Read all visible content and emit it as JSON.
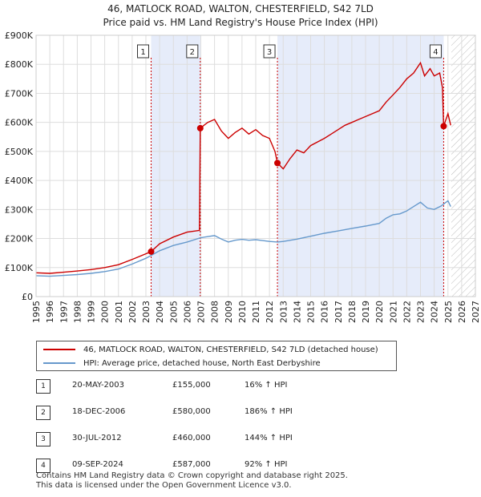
{
  "title_line1": "46, MATLOCK ROAD, WALTON, CHESTERFIELD, S42 7LD",
  "title_line2": "Price paid vs. HM Land Registry's House Price Index (HPI)",
  "legend": {
    "property": "46, MATLOCK ROAD, WALTON, CHESTERFIELD, S42 7LD (detached house)",
    "hpi": "HPI: Average price, detached house, North East Derbyshire"
  },
  "colors": {
    "property": "#cc0000",
    "hpi": "#6699cc",
    "shade": "#e6ecfa",
    "marker_line": "#cc0000"
  },
  "transactions": [
    {
      "n": "1",
      "date": "20-MAY-2003",
      "price": "£155,000",
      "hpi": "16% ↑ HPI"
    },
    {
      "n": "2",
      "date": "18-DEC-2006",
      "price": "£580,000",
      "hpi": "186% ↑ HPI"
    },
    {
      "n": "3",
      "date": "30-JUL-2012",
      "price": "£460,000",
      "hpi": "144% ↑ HPI"
    },
    {
      "n": "4",
      "date": "09-SEP-2024",
      "price": "£587,000",
      "hpi": "92% ↑ HPI"
    }
  ],
  "footer": {
    "line1": "Contains HM Land Registry data © Crown copyright and database right 2025.",
    "line2": "This data is licensed under the Open Government Licence v3.0."
  },
  "chart_data": {
    "type": "line",
    "title": "Price paid vs. HM Land Registry's House Price Index (HPI)",
    "xlim": [
      1995,
      2027
    ],
    "ylim": [
      0,
      900000
    ],
    "x_ticks": [
      "1995",
      "1996",
      "1997",
      "1998",
      "1999",
      "2000",
      "2001",
      "2002",
      "2003",
      "2004",
      "2005",
      "2006",
      "2007",
      "2008",
      "2009",
      "2010",
      "2011",
      "2012",
      "2013",
      "2014",
      "2015",
      "2016",
      "2017",
      "2018",
      "2019",
      "2020",
      "2021",
      "2022",
      "2023",
      "2024",
      "2025",
      "2026",
      "2027"
    ],
    "y_ticks": [
      {
        "value": 0,
        "label": "£0"
      },
      {
        "value": 100000,
        "label": "£100K"
      },
      {
        "value": 200000,
        "label": "£200K"
      },
      {
        "value": 300000,
        "label": "£300K"
      },
      {
        "value": 400000,
        "label": "£400K"
      },
      {
        "value": 500000,
        "label": "£500K"
      },
      {
        "value": 600000,
        "label": "£600K"
      },
      {
        "value": 700000,
        "label": "£700K"
      },
      {
        "value": 800000,
        "label": "£800K"
      },
      {
        "value": 900000,
        "label": "£900K"
      }
    ],
    "shaded_ranges": [
      [
        2003.38,
        2006.96
      ],
      [
        2012.58,
        2024.69
      ]
    ],
    "future_hatch_from": 2025.25,
    "sales": [
      {
        "label": "1",
        "x": 2003.38,
        "y": 155000
      },
      {
        "label": "2",
        "x": 2006.96,
        "y": 580000
      },
      {
        "label": "3",
        "x": 2012.58,
        "y": 460000
      },
      {
        "label": "4",
        "x": 2024.69,
        "y": 587000
      }
    ],
    "series": [
      {
        "name": "46, MATLOCK ROAD, WALTON, CHESTERFIELD, S42 7LD (detached house)",
        "color": "#cc0000",
        "points": [
          [
            1995,
            82000
          ],
          [
            1996,
            80000
          ],
          [
            1997,
            84000
          ],
          [
            1998,
            88000
          ],
          [
            1999,
            93000
          ],
          [
            2000,
            100000
          ],
          [
            2001,
            110000
          ],
          [
            2002,
            128000
          ],
          [
            2003.38,
            155000
          ],
          [
            2004,
            182000
          ],
          [
            2005,
            205000
          ],
          [
            2006,
            222000
          ],
          [
            2006.9,
            228000
          ],
          [
            2006.96,
            580000
          ],
          [
            2007.5,
            600000
          ],
          [
            2008,
            610000
          ],
          [
            2008.5,
            570000
          ],
          [
            2009,
            545000
          ],
          [
            2009.5,
            565000
          ],
          [
            2010,
            580000
          ],
          [
            2010.5,
            560000
          ],
          [
            2011,
            575000
          ],
          [
            2011.5,
            555000
          ],
          [
            2012,
            545000
          ],
          [
            2012.4,
            500000
          ],
          [
            2012.58,
            460000
          ],
          [
            2013,
            440000
          ],
          [
            2013.5,
            475000
          ],
          [
            2014,
            505000
          ],
          [
            2014.5,
            495000
          ],
          [
            2015,
            520000
          ],
          [
            2016,
            545000
          ],
          [
            2016.5,
            560000
          ],
          [
            2017,
            575000
          ],
          [
            2017.5,
            590000
          ],
          [
            2018,
            600000
          ],
          [
            2018.5,
            610000
          ],
          [
            2019,
            620000
          ],
          [
            2020,
            640000
          ],
          [
            2020.5,
            670000
          ],
          [
            2021,
            695000
          ],
          [
            2021.5,
            720000
          ],
          [
            2022,
            750000
          ],
          [
            2022.5,
            770000
          ],
          [
            2023,
            805000
          ],
          [
            2023.3,
            760000
          ],
          [
            2023.7,
            785000
          ],
          [
            2024,
            760000
          ],
          [
            2024.4,
            770000
          ],
          [
            2024.6,
            720000
          ],
          [
            2024.69,
            587000
          ],
          [
            2025,
            630000
          ],
          [
            2025.2,
            590000
          ]
        ]
      },
      {
        "name": "HPI: Average price, detached house, North East Derbyshire",
        "color": "#6699cc",
        "points": [
          [
            1995,
            72000
          ],
          [
            1996,
            70000
          ],
          [
            1997,
            73000
          ],
          [
            1998,
            76000
          ],
          [
            1999,
            80000
          ],
          [
            2000,
            86000
          ],
          [
            2001,
            95000
          ],
          [
            2002,
            112000
          ],
          [
            2003,
            132000
          ],
          [
            2004,
            158000
          ],
          [
            2005,
            176000
          ],
          [
            2006,
            188000
          ],
          [
            2007,
            203000
          ],
          [
            2008,
            210000
          ],
          [
            2008.5,
            198000
          ],
          [
            2009,
            188000
          ],
          [
            2009.5,
            194000
          ],
          [
            2010,
            197000
          ],
          [
            2010.5,
            194000
          ],
          [
            2011,
            196000
          ],
          [
            2011.5,
            193000
          ],
          [
            2012,
            190000
          ],
          [
            2012.58,
            188000
          ],
          [
            2013,
            190000
          ],
          [
            2014,
            198000
          ],
          [
            2015,
            208000
          ],
          [
            2016,
            218000
          ],
          [
            2017,
            226000
          ],
          [
            2018,
            235000
          ],
          [
            2019,
            243000
          ],
          [
            2020,
            252000
          ],
          [
            2020.5,
            270000
          ],
          [
            2021,
            282000
          ],
          [
            2021.5,
            285000
          ],
          [
            2022,
            295000
          ],
          [
            2022.5,
            310000
          ],
          [
            2023,
            325000
          ],
          [
            2023.5,
            305000
          ],
          [
            2024,
            300000
          ],
          [
            2024.5,
            312000
          ],
          [
            2025,
            330000
          ],
          [
            2025.2,
            310000
          ]
        ]
      }
    ]
  }
}
